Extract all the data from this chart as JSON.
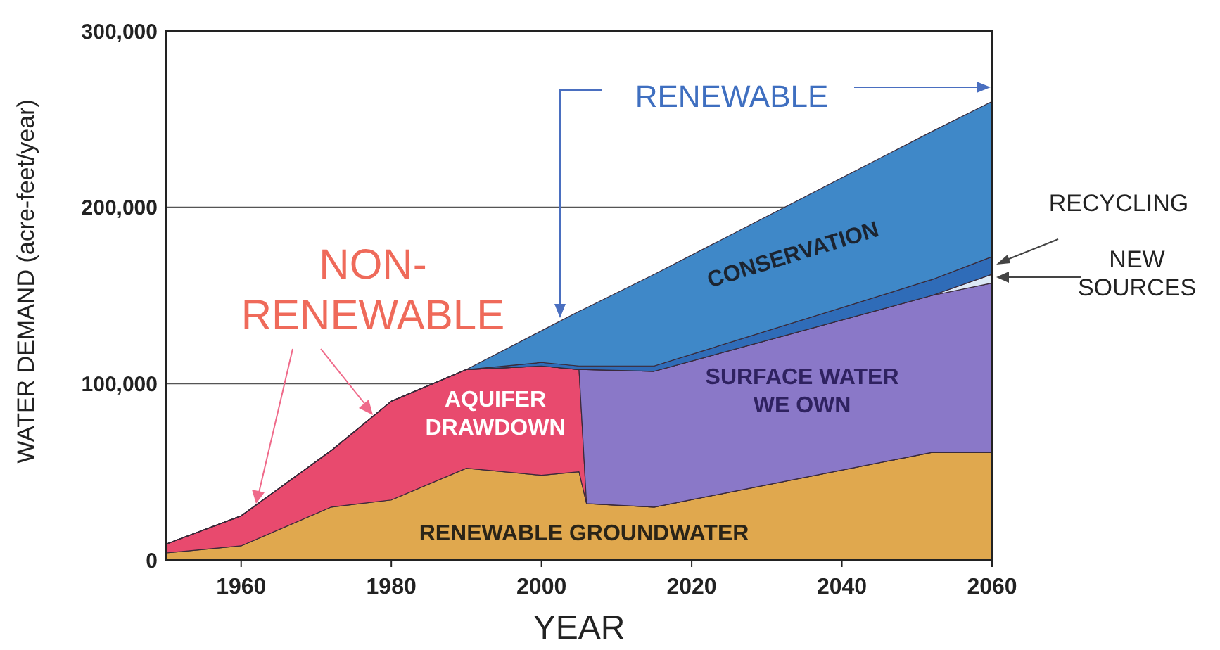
{
  "chart_data": {
    "type": "area",
    "stacked": true,
    "xlabel": "YEAR",
    "ylabel": "WATER DEMAND (acre-feet/year)",
    "x": [
      1950,
      1960,
      1972,
      1980,
      1990,
      2000,
      2005,
      2006,
      2015,
      2052,
      2060
    ],
    "xlim": [
      1950,
      2060
    ],
    "xticks": [
      1960,
      1980,
      2000,
      2020,
      2040,
      2060
    ],
    "ylim": [
      0,
      300000
    ],
    "yticks": [
      {
        "value": 0,
        "label": "0"
      },
      {
        "value": 100000,
        "label": "100,000"
      },
      {
        "value": 200000,
        "label": "200,000"
      },
      {
        "value": 300000,
        "label": "300,000"
      }
    ],
    "grid": "y",
    "series": [
      {
        "name": "RENEWABLE GROUNDWATER",
        "color": "#e0a84e",
        "values": [
          4000,
          8000,
          30000,
          34000,
          52000,
          48000,
          50000,
          32000,
          30000,
          61000,
          61000
        ]
      },
      {
        "name": "AQUIFER DRAWDOWN",
        "color": "#e84a6e",
        "values": [
          5000,
          17000,
          32000,
          56000,
          56000,
          62000,
          58000,
          0,
          0,
          0,
          0
        ]
      },
      {
        "name": "SURFACE WATER WE OWN",
        "color": "#8a78c8",
        "values": [
          0,
          0,
          0,
          0,
          0,
          0,
          0,
          76000,
          77000,
          89000,
          96000
        ]
      },
      {
        "name": "NEW SOURCES",
        "color": "#dce8f5",
        "values": [
          0,
          0,
          0,
          0,
          0,
          0,
          0,
          0,
          0,
          0,
          5000
        ]
      },
      {
        "name": "RECYCLING",
        "color": "#2f6cb8",
        "values": [
          0,
          0,
          0,
          0,
          0,
          2000,
          2000,
          2000,
          3000,
          9000,
          10000
        ]
      },
      {
        "name": "CONSERVATION",
        "color": "#3f88c8",
        "values": [
          0,
          0,
          0,
          0,
          0,
          18000,
          31000,
          33000,
          52000,
          84000,
          88000
        ]
      }
    ],
    "annotations": [
      "NON-RENEWABLE",
      "RENEWABLE"
    ]
  }
}
